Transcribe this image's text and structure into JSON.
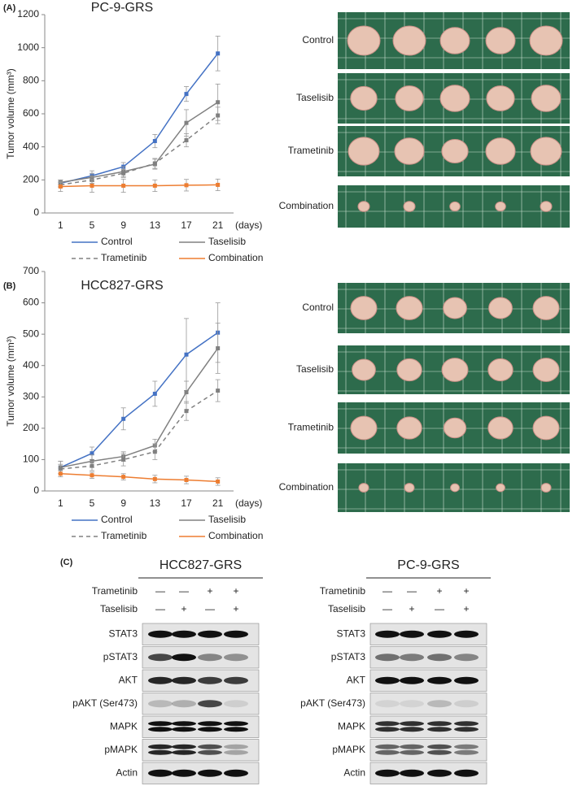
{
  "panels": {
    "a": "(A)",
    "b": "(B)",
    "c": "(C)"
  },
  "chart_data": [
    {
      "type": "line",
      "title": "PC-9-GRS",
      "y_label": "Tumor volume (mm³)",
      "x_label": "(days)",
      "categories": [
        "1",
        "5",
        "9",
        "13",
        "17",
        "21"
      ],
      "ylim": [
        0,
        1200
      ],
      "yticks": [
        0,
        200,
        400,
        600,
        800,
        1000,
        1200
      ],
      "legend": "bottom",
      "series": [
        {
          "name": "Control",
          "color": "#4472c4",
          "linestyle": "solid",
          "values": [
            180,
            225,
            280,
            435,
            720,
            965
          ],
          "errors": [
            20,
            30,
            25,
            40,
            45,
            105
          ]
        },
        {
          "name": "Taselisib",
          "color": "#808080",
          "linestyle": "solid",
          "values": [
            185,
            215,
            250,
            295,
            545,
            670
          ],
          "errors": [
            15,
            25,
            30,
            30,
            80,
            110
          ]
        },
        {
          "name": "Trametinib",
          "color": "#808080",
          "linestyle": "dashed",
          "values": [
            170,
            200,
            240,
            300,
            440,
            590
          ],
          "errors": [
            15,
            20,
            25,
            30,
            40,
            50
          ]
        },
        {
          "name": "Combination",
          "color": "#ed7d31",
          "linestyle": "solid",
          "values": [
            160,
            165,
            165,
            165,
            168,
            170
          ],
          "errors": [
            30,
            40,
            40,
            35,
            35,
            35
          ]
        }
      ]
    },
    {
      "type": "line",
      "title": "HCC827-GRS",
      "y_label": "Tumor volume (mm³)",
      "x_label": "(days)",
      "categories": [
        "1",
        "5",
        "9",
        "13",
        "17",
        "21"
      ],
      "ylim": [
        0,
        700
      ],
      "yticks": [
        0,
        100,
        200,
        300,
        400,
        500,
        600,
        700
      ],
      "legend": "bottom",
      "series": [
        {
          "name": "Control",
          "color": "#4472c4",
          "linestyle": "solid",
          "values": [
            75,
            120,
            230,
            310,
            435,
            505
          ],
          "errors": [
            20,
            20,
            35,
            40,
            115,
            95
          ]
        },
        {
          "name": "Taselisib",
          "color": "#808080",
          "linestyle": "solid",
          "values": [
            75,
            95,
            110,
            145,
            315,
            455
          ],
          "errors": [
            20,
            20,
            15,
            20,
            35,
            80
          ]
        },
        {
          "name": "Trametinib",
          "color": "#808080",
          "linestyle": "dashed",
          "values": [
            70,
            80,
            100,
            125,
            255,
            320
          ],
          "errors": [
            15,
            15,
            20,
            25,
            30,
            35
          ]
        },
        {
          "name": "Combination",
          "color": "#ed7d31",
          "linestyle": "solid",
          "values": [
            55,
            50,
            45,
            38,
            35,
            30
          ],
          "errors": [
            10,
            10,
            10,
            12,
            12,
            12
          ]
        }
      ]
    }
  ],
  "photos": [
    {
      "labels": [
        "Control",
        "Taselisib",
        "Trametinib",
        "Combination"
      ]
    },
    {
      "labels": [
        "Control",
        "Taselisib",
        "Trametinib",
        "Combination"
      ]
    }
  ],
  "blots": [
    {
      "title": "HCC827-GRS",
      "treatments": [
        {
          "name": "Trametinib",
          "signs": [
            "—",
            "—",
            "+",
            "+"
          ]
        },
        {
          "name": "Taselisib",
          "signs": [
            "—",
            "+",
            "—",
            "+"
          ]
        }
      ],
      "proteins": [
        "STAT3",
        "pSTAT3",
        "AKT",
        "pAKT (Ser473)",
        "MAPK",
        "pMAPK",
        "Actin"
      ]
    },
    {
      "title": "PC-9-GRS",
      "treatments": [
        {
          "name": "Trametinib",
          "signs": [
            "—",
            "—",
            "+",
            "+"
          ]
        },
        {
          "name": "Taselisib",
          "signs": [
            "—",
            "+",
            "—",
            "+"
          ]
        }
      ],
      "proteins": [
        "STAT3",
        "pSTAT3",
        "AKT",
        "pAKT (Ser473)",
        "MAPK",
        "pMAPK",
        "Actin"
      ]
    }
  ]
}
